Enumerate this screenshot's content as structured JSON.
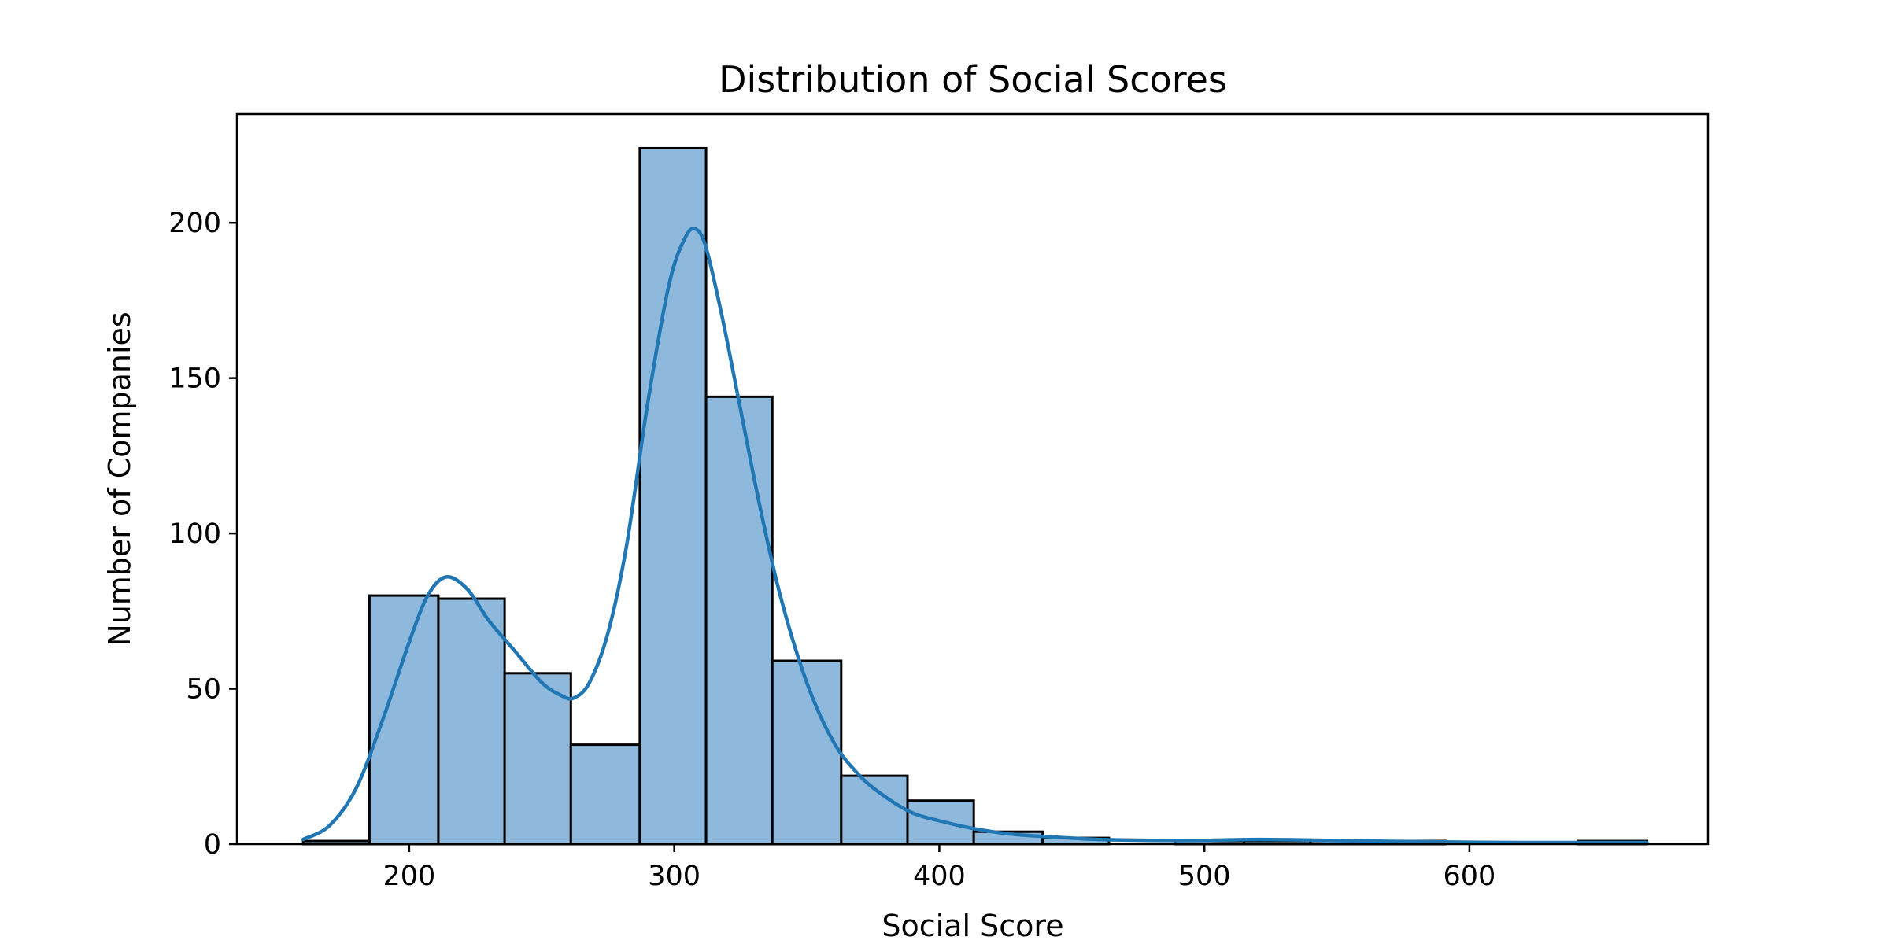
{
  "chart_data": {
    "type": "bar",
    "title": "Distribution of Social Scores",
    "xlabel": "Social Score",
    "ylabel": "Number of Companies",
    "xlim": [
      135,
      690
    ],
    "ylim": [
      0,
      235
    ],
    "xticks": [
      200,
      300,
      400,
      500,
      600
    ],
    "yticks": [
      0,
      50,
      100,
      150,
      200
    ],
    "grid": false,
    "bins": [
      {
        "x0": 160,
        "x1": 185,
        "count": 1
      },
      {
        "x0": 185,
        "x1": 211,
        "count": 80
      },
      {
        "x0": 211,
        "x1": 236,
        "count": 79
      },
      {
        "x0": 236,
        "x1": 261,
        "count": 55
      },
      {
        "x0": 261,
        "x1": 287,
        "count": 32
      },
      {
        "x0": 287,
        "x1": 312,
        "count": 224
      },
      {
        "x0": 312,
        "x1": 337,
        "count": 144
      },
      {
        "x0": 337,
        "x1": 363,
        "count": 59
      },
      {
        "x0": 363,
        "x1": 388,
        "count": 22
      },
      {
        "x0": 388,
        "x1": 413,
        "count": 14
      },
      {
        "x0": 413,
        "x1": 439,
        "count": 4
      },
      {
        "x0": 439,
        "x1": 464,
        "count": 2
      },
      {
        "x0": 464,
        "x1": 489,
        "count": 0
      },
      {
        "x0": 489,
        "x1": 515,
        "count": 1
      },
      {
        "x0": 515,
        "x1": 540,
        "count": 1
      },
      {
        "x0": 540,
        "x1": 565,
        "count": 1
      },
      {
        "x0": 565,
        "x1": 591,
        "count": 1
      },
      {
        "x0": 591,
        "x1": 616,
        "count": 0
      },
      {
        "x0": 616,
        "x1": 641,
        "count": 0
      },
      {
        "x0": 641,
        "x1": 667,
        "count": 1
      }
    ],
    "kde": {
      "x": [
        160,
        170,
        180,
        190,
        200,
        207,
        214,
        222,
        230,
        240,
        250,
        257,
        262,
        268,
        275,
        282,
        290,
        298,
        304,
        308,
        312,
        318,
        325,
        332,
        340,
        350,
        360,
        370,
        380,
        390,
        400,
        410,
        420,
        430,
        445,
        460,
        480,
        500,
        520,
        540,
        560,
        580,
        600,
        620,
        640,
        667
      ],
      "y": [
        1.5,
        6,
        18,
        40,
        65,
        80,
        86,
        82,
        72,
        62,
        52,
        48,
        47,
        52,
        68,
        96,
        142,
        180,
        195,
        198,
        192,
        170,
        140,
        110,
        80,
        52,
        33,
        22,
        15,
        10,
        7.5,
        5.5,
        4,
        3,
        2.2,
        1.5,
        1.2,
        1.2,
        1.5,
        1.3,
        1,
        0.8,
        0.6,
        0.5,
        0.5,
        0.5
      ]
    },
    "colors": {
      "bar_fill": "#8fb9dc",
      "bar_edge": "#000000",
      "kde_line": "#2176b4",
      "axis": "#000000"
    }
  }
}
